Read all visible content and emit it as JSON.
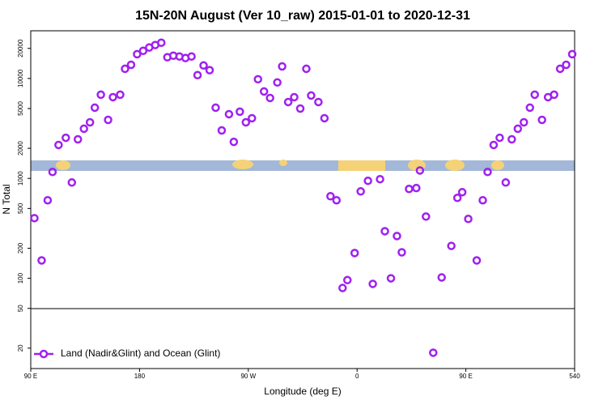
{
  "chart_data": {
    "type": "scatter",
    "title": "15N-20N August (Ver 10_raw)   2015-01-01 to 2020-12-31",
    "xlabel": "Longitude (deg E)",
    "ylabel": "N Total",
    "log_y": true,
    "legend": "lower left",
    "xlim": [
      90,
      540
    ],
    "xticks": [
      {
        "value": 90,
        "label": "90 E"
      },
      180,
      {
        "value": 270,
        "label": "90 W"
      },
      {
        "value": 360,
        "label": "0"
      },
      {
        "value": 450,
        "label": "90 E"
      },
      540
    ],
    "ylim": [
      12.5,
      30000
    ],
    "yticks": [
      20,
      50,
      100,
      200,
      500,
      1000,
      2000,
      5000,
      10000,
      20000
    ],
    "series": [
      {
        "name": "Land (Nadir&Glint) and Ocean (Glint)",
        "color": "#a020f0",
        "x": [
          93,
          99,
          104,
          108,
          113,
          119,
          124,
          129,
          134,
          139,
          143,
          148,
          154,
          158,
          164,
          168,
          173,
          178,
          183,
          188,
          193,
          198,
          203,
          208,
          213,
          218,
          223,
          228,
          233,
          238,
          243,
          248,
          254,
          258,
          263,
          268,
          273,
          278,
          283,
          288,
          294,
          298,
          303,
          308,
          313,
          318,
          322,
          328,
          333,
          338,
          343,
          348,
          352,
          358,
          363,
          369,
          373,
          379,
          383,
          388,
          393,
          397,
          403,
          409,
          412,
          417,
          423,
          430,
          438,
          443,
          447,
          452,
          459,
          464,
          468,
          473,
          478,
          483,
          488,
          493,
          498,
          503,
          507,
          513,
          518,
          523,
          528,
          533,
          538
        ],
        "values": [
          400,
          151,
          604,
          1160,
          2160,
          2550,
          910,
          2460,
          3140,
          3640,
          5100,
          6880,
          3850,
          6500,
          6880,
          12500,
          13700,
          17500,
          18900,
          20400,
          21600,
          22800,
          16300,
          16900,
          16600,
          16000,
          16600,
          10800,
          13500,
          12100,
          5100,
          3020,
          4390,
          2320,
          4650,
          3640,
          4000,
          9820,
          7410,
          6380,
          9120,
          13200,
          5810,
          6500,
          5000,
          12500,
          6750,
          5810,
          4000,
          663,
          604,
          80,
          96,
          179,
          741,
          946,
          88,
          982,
          296,
          100,
          265,
          182,
          784,
          800,
          1200,
          415,
          18,
          102,
          211,
          638,
          727,
          393,
          151,
          604,
          1160,
          2160,
          2550,
          910,
          2460,
          3140,
          3640,
          5100,
          6880,
          3850,
          6500,
          6880,
          12500,
          13700,
          17500
        ]
      }
    ]
  }
}
